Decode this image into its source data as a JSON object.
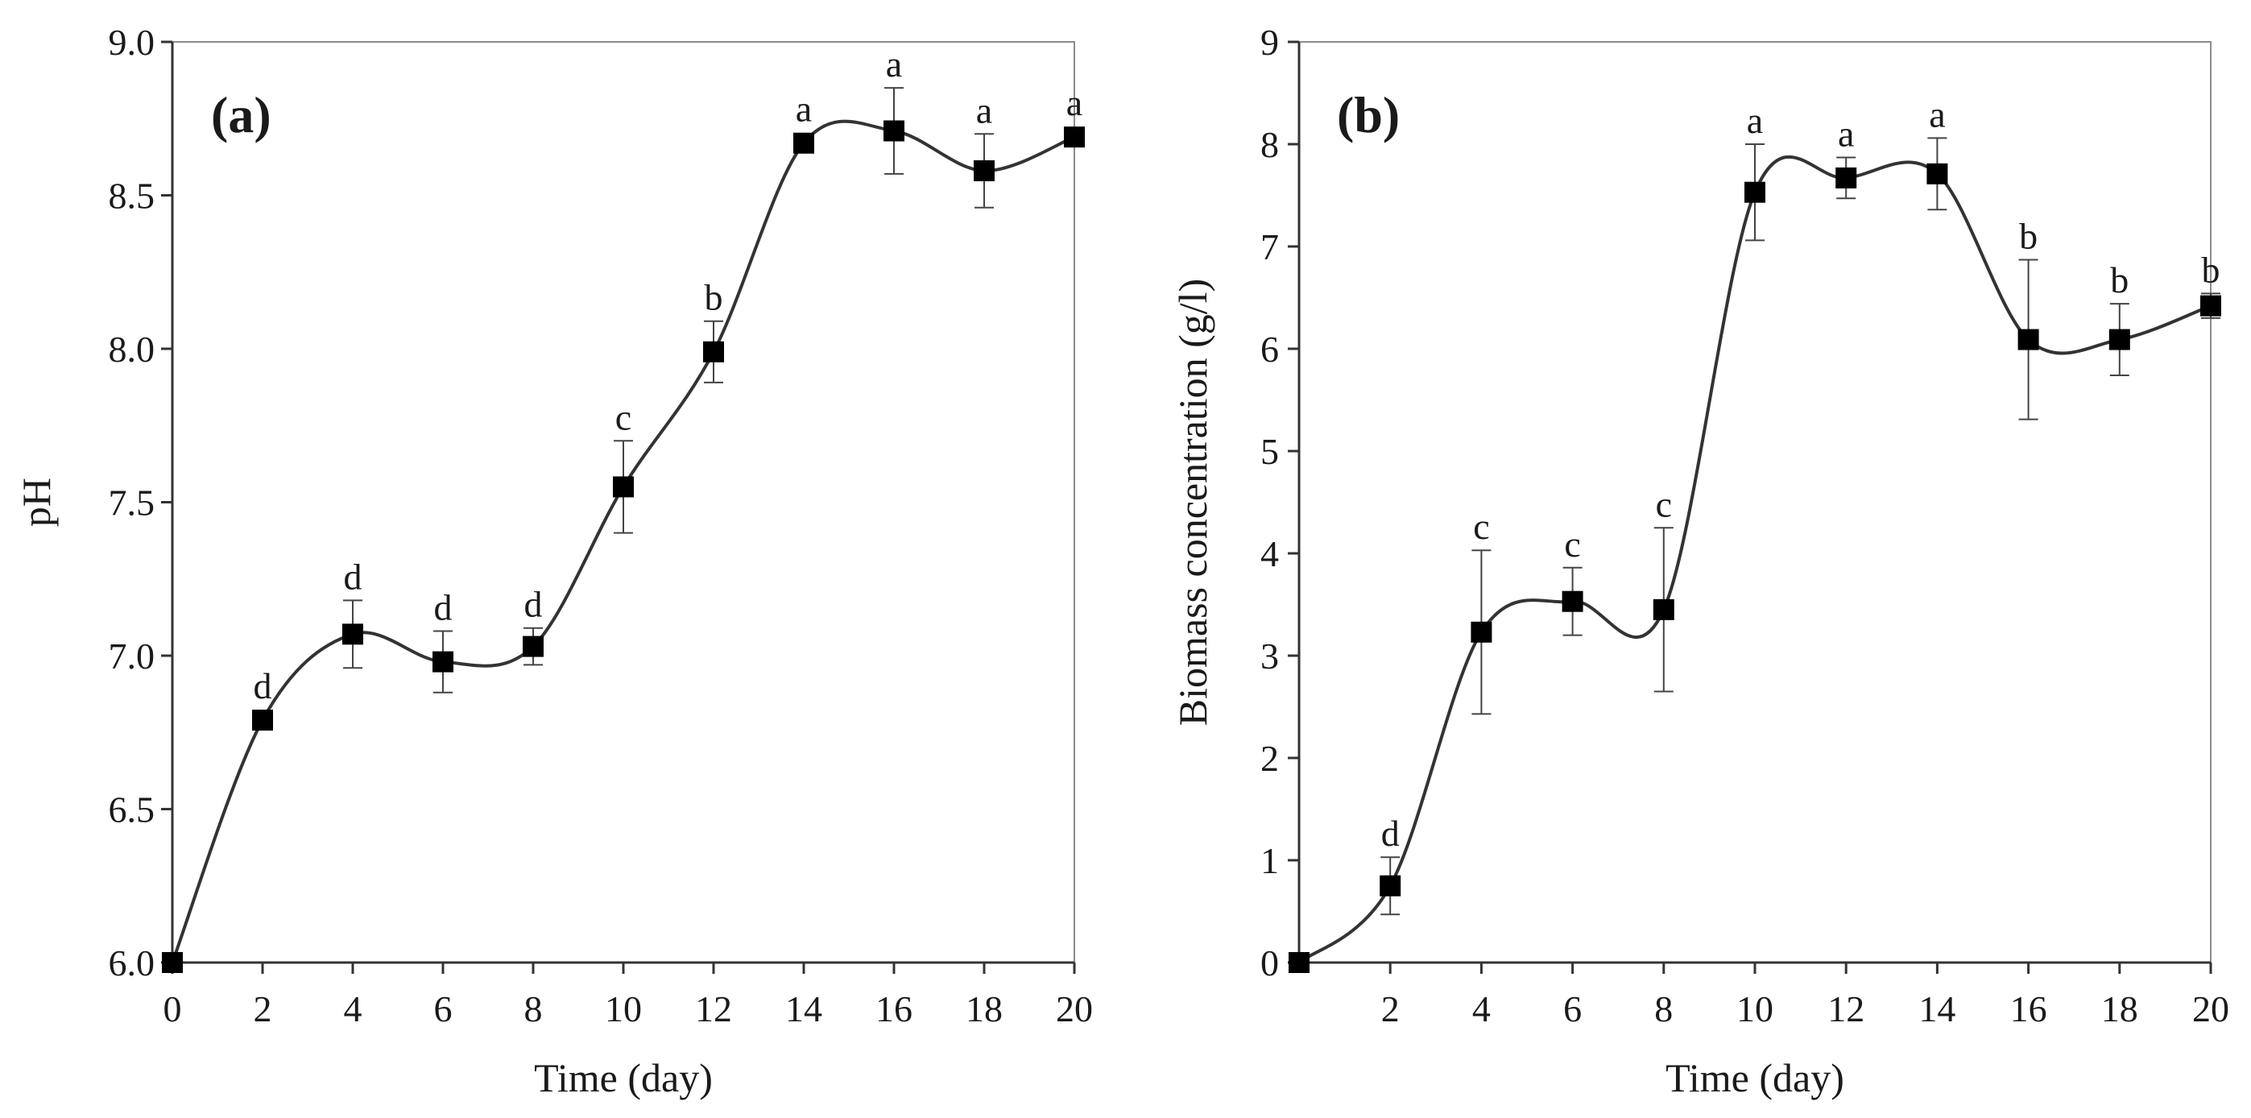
{
  "chart_data": [
    {
      "type": "line",
      "panel_label": "(a)",
      "title": "",
      "xlabel": "Time (day)",
      "ylabel": "pH",
      "xlim": [
        0,
        20
      ],
      "ylim": [
        6.0,
        9.0
      ],
      "x_ticks": [
        0,
        2,
        4,
        6,
        8,
        10,
        12,
        14,
        16,
        18,
        20
      ],
      "x_tick_labels": [
        "0",
        "2",
        "4",
        "6",
        "8",
        "10",
        "12",
        "14",
        "16",
        "18",
        "20"
      ],
      "y_ticks": [
        6.0,
        6.5,
        7.0,
        7.5,
        8.0,
        8.5,
        9.0
      ],
      "y_tick_labels": [
        "6.0",
        "6.5",
        "7.0",
        "7.5",
        "8.0",
        "8.5",
        "9.0"
      ],
      "grid": false,
      "marker": "square",
      "smooth": true,
      "line_color": "#333333",
      "marker_color": "#000000",
      "series": [
        {
          "name": "pH",
          "x": [
            0,
            2,
            4,
            6,
            8,
            10,
            12,
            14,
            16,
            18,
            20
          ],
          "y": [
            6.0,
            6.79,
            7.07,
            6.98,
            7.03,
            7.55,
            7.99,
            8.67,
            8.71,
            8.58,
            8.69
          ],
          "error": [
            0.0,
            0.0,
            0.11,
            0.1,
            0.06,
            0.15,
            0.1,
            0.0,
            0.14,
            0.12,
            0.0
          ],
          "labels": [
            "",
            "d",
            "d",
            "d",
            "d",
            "c",
            "b",
            "a",
            "a",
            "a",
            "a"
          ]
        }
      ]
    },
    {
      "type": "line",
      "panel_label": "(b)",
      "title": "",
      "xlabel": "Time (day)",
      "ylabel": "Biomass concentration (g/l)",
      "xlim": [
        0,
        20
      ],
      "ylim": [
        0,
        9
      ],
      "x_ticks": [
        2,
        4,
        6,
        8,
        10,
        12,
        14,
        16,
        18,
        20
      ],
      "x_tick_labels": [
        "2",
        "4",
        "6",
        "8",
        "10",
        "12",
        "14",
        "16",
        "18",
        "20"
      ],
      "y_ticks": [
        0,
        1,
        2,
        3,
        4,
        5,
        6,
        7,
        8,
        9
      ],
      "y_tick_labels": [
        "0",
        "1",
        "2",
        "3",
        "4",
        "5",
        "6",
        "7",
        "8",
        "9"
      ],
      "grid": false,
      "marker": "square",
      "smooth": true,
      "line_color": "#333333",
      "marker_color": "#000000",
      "series": [
        {
          "name": "Biomass",
          "x": [
            0,
            2,
            4,
            6,
            8,
            10,
            12,
            14,
            16,
            18,
            20
          ],
          "y": [
            0.0,
            0.75,
            3.23,
            3.53,
            3.45,
            7.53,
            7.67,
            7.71,
            6.09,
            6.09,
            6.42
          ],
          "error": [
            0.0,
            0.28,
            0.8,
            0.33,
            0.8,
            0.47,
            0.2,
            0.35,
            0.78,
            0.35,
            0.12
          ],
          "labels": [
            "",
            "d",
            "c",
            "c",
            "c",
            "a",
            "a",
            "a",
            "b",
            "b",
            "b"
          ]
        }
      ]
    }
  ]
}
